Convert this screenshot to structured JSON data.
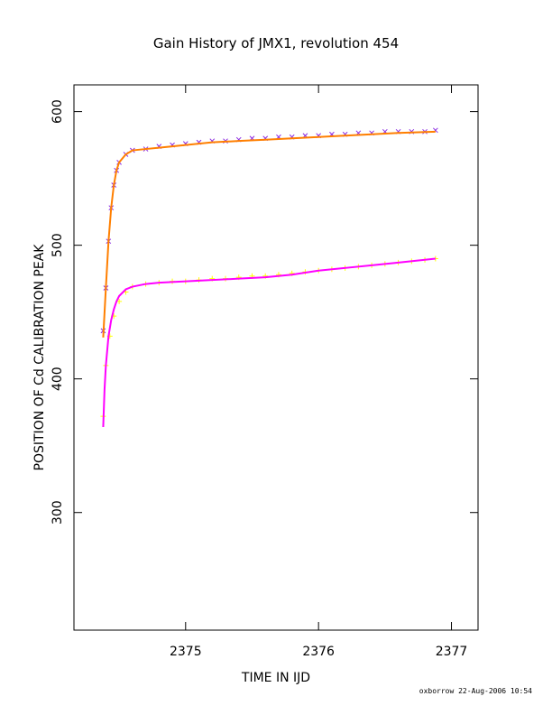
{
  "chart_data": {
    "type": "scatter",
    "title": "Gain History of JMX1, revolution 454",
    "xlabel": "TIME IN IJD",
    "ylabel": "POSITION OF Cd CALIBRATION PEAK",
    "xlim": [
      2374.16,
      2377.2
    ],
    "ylim": [
      212,
      620
    ],
    "xticks": [
      2375,
      2376,
      2377
    ],
    "yticks": [
      300,
      400,
      500,
      600
    ],
    "grid": false,
    "colors": {
      "purple_points": "#8b2be2",
      "orange_fit": "#ff7f00",
      "yellow_points": "#ffff00",
      "magenta_fit": "#ff00ff"
    },
    "series": [
      {
        "marker": "x",
        "color": "#8b2be2",
        "x": [
          2374.38,
          2374.4,
          2374.42,
          2374.44,
          2374.46,
          2374.48,
          2374.5,
          2374.55,
          2374.6,
          2374.7,
          2374.8,
          2374.9,
          2375.0,
          2375.1,
          2375.2,
          2375.3,
          2375.4,
          2375.5,
          2375.6,
          2375.7,
          2375.8,
          2375.9,
          2376.0,
          2376.1,
          2376.2,
          2376.3,
          2376.4,
          2376.5,
          2376.6,
          2376.7,
          2376.8,
          2376.88
        ],
        "y": [
          436,
          468,
          503,
          528,
          545,
          556,
          562,
          568,
          571,
          572,
          574,
          575,
          576,
          577,
          578,
          578,
          579,
          580,
          580,
          581,
          581,
          582,
          582,
          583,
          583,
          584,
          584,
          585,
          585,
          585,
          585,
          586
        ]
      },
      {
        "marker": "+",
        "color": "#ffff00",
        "x": [
          2374.38,
          2374.4,
          2374.43,
          2374.46,
          2374.5,
          2374.55,
          2374.6,
          2374.7,
          2374.8,
          2374.9,
          2375.0,
          2375.1,
          2375.2,
          2375.3,
          2375.4,
          2375.5,
          2375.6,
          2375.7,
          2375.8,
          2375.9,
          2376.0,
          2376.1,
          2376.2,
          2376.3,
          2376.4,
          2376.5,
          2376.6,
          2376.7,
          2376.8,
          2376.88
        ],
        "y": [
          372,
          410,
          432,
          447,
          458,
          465,
          469,
          471,
          472,
          473,
          473,
          474,
          475,
          475,
          476,
          477,
          477,
          478,
          479,
          480,
          481,
          482,
          483,
          484,
          485,
          486,
          487,
          488,
          489,
          490
        ]
      },
      {
        "type": "line",
        "color": "#ff7f00",
        "x": [
          2374.38,
          2374.4,
          2374.42,
          2374.44,
          2374.46,
          2374.48,
          2374.5,
          2374.55,
          2374.6,
          2374.7,
          2374.8,
          2375.0,
          2375.2,
          2375.4,
          2375.6,
          2375.8,
          2376.0,
          2376.2,
          2376.4,
          2376.6,
          2376.88
        ],
        "y": [
          431,
          468,
          503,
          528,
          545,
          556,
          562,
          568,
          571,
          572,
          573,
          575,
          577,
          578,
          579,
          580,
          581,
          582,
          583,
          584,
          585
        ]
      },
      {
        "type": "line",
        "color": "#ff00ff",
        "x": [
          2374.38,
          2374.39,
          2374.4,
          2374.42,
          2374.44,
          2374.46,
          2374.48,
          2374.5,
          2374.55,
          2374.6,
          2374.7,
          2374.8,
          2375.0,
          2375.2,
          2375.4,
          2375.6,
          2375.8,
          2376.0,
          2376.2,
          2376.4,
          2376.6,
          2376.88
        ],
        "y": [
          364,
          392,
          410,
          432,
          444,
          452,
          458,
          462,
          467,
          469,
          471,
          472,
          473,
          474,
          475,
          476,
          478,
          481,
          483,
          485,
          487,
          490
        ]
      }
    ]
  },
  "footer": "oxborrow 22-Aug-2006 10:54"
}
